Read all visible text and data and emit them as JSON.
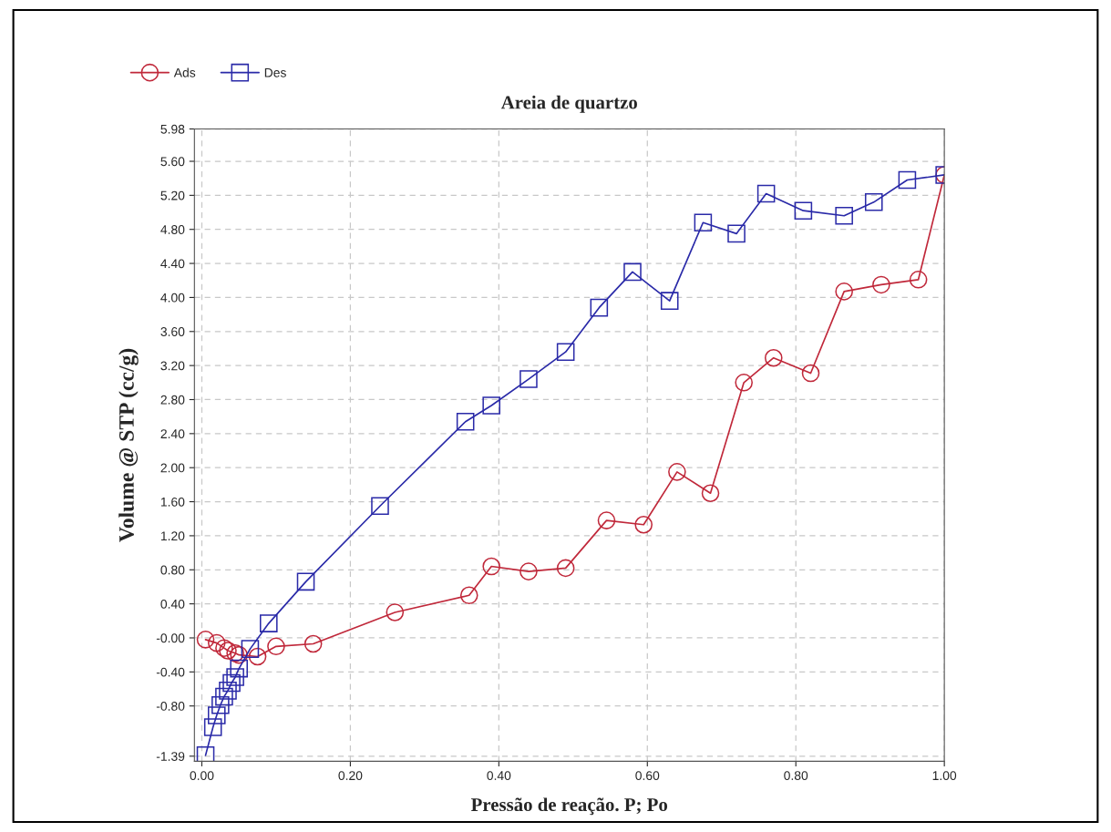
{
  "chart_data": {
    "type": "line",
    "title": "Areia de quartzo",
    "xlabel": "Pressão de reação. P; Po",
    "ylabel": "Volume @ STP (cc/g)",
    "xlim": [
      -0.01,
      1.0
    ],
    "ylim": [
      -1.45,
      5.98
    ],
    "xticks": [
      {
        "value": 0,
        "label": "0.00"
      },
      {
        "value": 0.2,
        "label": "0.20"
      },
      {
        "value": 0.4,
        "label": "0.40"
      },
      {
        "value": 0.6,
        "label": "0.60"
      },
      {
        "value": 0.8,
        "label": "0.80"
      },
      {
        "value": 1.0,
        "label": "1.00"
      }
    ],
    "yticks": [
      {
        "value": -1.39,
        "label": "-1.39"
      },
      {
        "value": -0.8,
        "label": "-0.80"
      },
      {
        "value": -0.4,
        "label": "-0.40"
      },
      {
        "value": 0,
        "label": "-0.00"
      },
      {
        "value": 0.4,
        "label": "0.40"
      },
      {
        "value": 0.8,
        "label": "0.80"
      },
      {
        "value": 1.2,
        "label": "1.20"
      },
      {
        "value": 1.6,
        "label": "1.60"
      },
      {
        "value": 2.0,
        "label": "2.00"
      },
      {
        "value": 2.4,
        "label": "2.40"
      },
      {
        "value": 2.8,
        "label": "2.80"
      },
      {
        "value": 3.2,
        "label": "3.20"
      },
      {
        "value": 3.6,
        "label": "3.60"
      },
      {
        "value": 4.0,
        "label": "4.00"
      },
      {
        "value": 4.4,
        "label": "4.40"
      },
      {
        "value": 4.8,
        "label": "4.80"
      },
      {
        "value": 5.2,
        "label": "5.20"
      },
      {
        "value": 5.6,
        "label": "5.60"
      },
      {
        "value": 5.98,
        "label": "5.98"
      }
    ],
    "grid": true,
    "legend": "top left",
    "line_style": "solid",
    "series": [
      {
        "name": "Ads",
        "color": "#c0283a",
        "marker": "circle",
        "x": [
          0.005,
          0.02,
          0.03,
          0.035,
          0.045,
          0.05,
          0.075,
          0.1,
          0.15,
          0.26,
          0.36,
          0.39,
          0.44,
          0.49,
          0.545,
          0.595,
          0.64,
          0.685,
          0.73,
          0.77,
          0.82,
          0.865,
          0.915,
          0.965,
          1.0
        ],
        "values": [
          -0.02,
          -0.06,
          -0.12,
          -0.15,
          -0.18,
          -0.2,
          -0.22,
          -0.1,
          -0.07,
          0.3,
          0.5,
          0.84,
          0.78,
          0.82,
          1.38,
          1.33,
          1.95,
          1.7,
          3.0,
          3.29,
          3.11,
          4.07,
          4.15,
          4.21,
          5.44
        ]
      },
      {
        "name": "Des",
        "color": "#2a2aa8",
        "marker": "square",
        "x": [
          0.005,
          0.015,
          0.02,
          0.025,
          0.03,
          0.035,
          0.04,
          0.045,
          0.05,
          0.065,
          0.09,
          0.14,
          0.24,
          0.355,
          0.39,
          0.44,
          0.49,
          0.535,
          0.58,
          0.63,
          0.675,
          0.72,
          0.76,
          0.81,
          0.865,
          0.905,
          0.95,
          1.0
        ],
        "values": [
          -1.38,
          -1.05,
          -0.91,
          -0.79,
          -0.69,
          -0.62,
          -0.53,
          -0.46,
          -0.36,
          -0.13,
          0.17,
          0.66,
          1.55,
          2.54,
          2.73,
          3.04,
          3.36,
          3.88,
          4.3,
          3.96,
          4.88,
          4.75,
          5.22,
          5.02,
          4.96,
          5.12,
          5.38,
          5.44
        ]
      }
    ]
  }
}
